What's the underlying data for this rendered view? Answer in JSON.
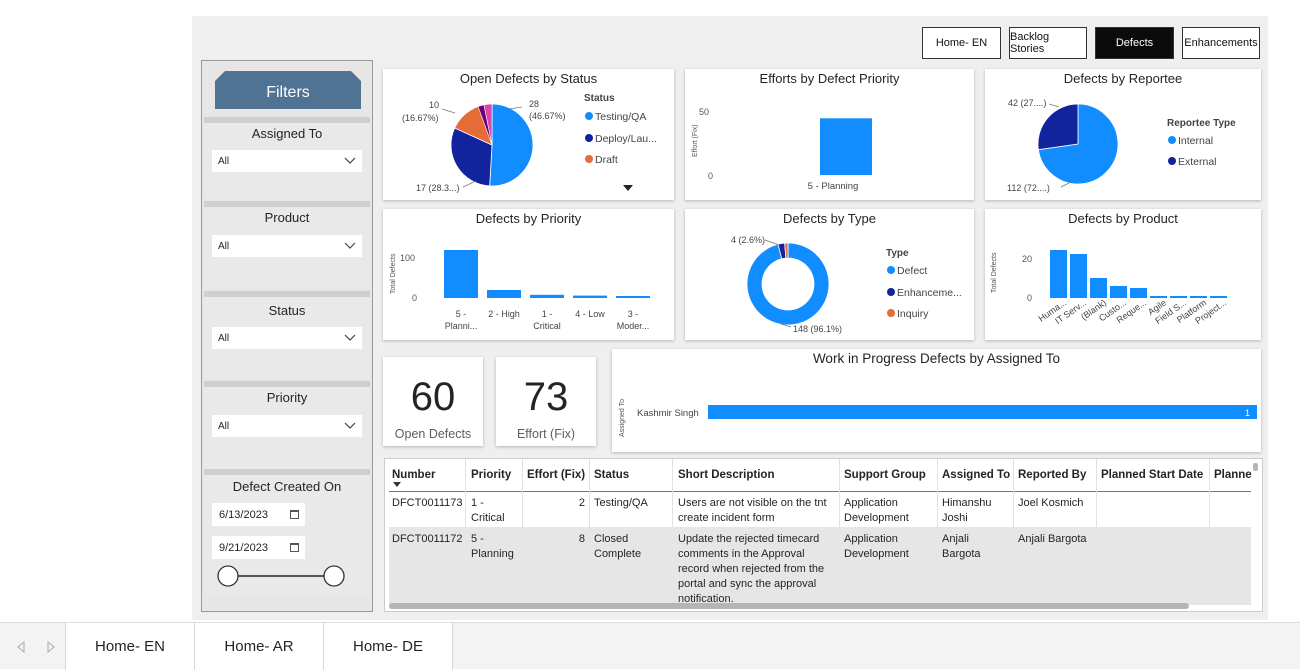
{
  "nav": {
    "buttons": [
      "Home- EN",
      "Backlog Stories",
      "Defects",
      "Enhancements"
    ]
  },
  "filters": {
    "header": "Filters",
    "assigned_to": {
      "label": "Assigned To",
      "value": "All"
    },
    "product": {
      "label": "Product",
      "value": "All"
    },
    "status": {
      "label": "Status",
      "value": "All"
    },
    "priority": {
      "label": "Priority",
      "value": "All"
    },
    "created": {
      "label": "Defect Created On",
      "start": "6/13/2023",
      "end": "9/21/2023"
    }
  },
  "open_by_status": {
    "title": "Open Defects by Status",
    "legend_title": "Status",
    "legend": [
      "Testing/QA",
      "Deploy/Lau...",
      "Draft"
    ],
    "label_top_left_1": "10",
    "label_top_left_2": "(16.67%)",
    "label_top_right_1": "28",
    "label_top_right_2": "(46.67%)",
    "label_bottom": "17 (28.3...)"
  },
  "efforts_by_priority": {
    "title": "Efforts by Defect Priority",
    "ylabel": "Effort (Fix)",
    "ticks": [
      "50",
      "0"
    ],
    "category": "5 - Planning"
  },
  "by_reportee": {
    "title": "Defects by Reportee",
    "legend_title": "Reportee Type",
    "legend": [
      "Internal",
      "External"
    ],
    "label_top": "42 (27....)",
    "label_bottom": "112 (72....)"
  },
  "by_priority": {
    "title": "Defects by Priority",
    "ylabel": "Total Defects",
    "ticks": [
      "100",
      "0"
    ],
    "categories": [
      [
        "5 -",
        "Planni..."
      ],
      [
        "2 - High"
      ],
      [
        "1 -",
        "Critical"
      ],
      [
        "4 - Low"
      ],
      [
        "3 -",
        "Moder..."
      ]
    ]
  },
  "by_type": {
    "title": "Defects by Type",
    "legend_title": "Type",
    "legend": [
      "Defect",
      "Enhanceme...",
      "Inquiry"
    ],
    "label_top": "4 (2.6%)",
    "label_bottom": "148 (96.1%)"
  },
  "by_product": {
    "title": "Defects by Product",
    "ylabel": "Total Defects",
    "ticks": [
      "20",
      "0"
    ],
    "categories": [
      "Huma...",
      "IT Serv...",
      "(Blank)",
      "Custo...",
      "Reque...",
      "Agile",
      "Field S...",
      "Platform",
      "Project..."
    ]
  },
  "kpis": [
    {
      "value": "60",
      "label": "Open Defects"
    },
    {
      "value": "73",
      "label": "Effort (Fix)"
    }
  ],
  "wip": {
    "title": "Work in Progress Defects by Assigned To",
    "ylabel": "Assigned To",
    "person": "Kashmir Singh",
    "value_label": "1"
  },
  "table": {
    "headers": [
      "Number",
      "Priority",
      "Effort (Fix)",
      "Status",
      "Short Description",
      "Support Group",
      "Assigned To",
      "Reported By",
      "Planned Start Date",
      "Planne"
    ],
    "rows": [
      {
        "number": "DFCT0011173",
        "priority": [
          "1 -",
          "Critical"
        ],
        "effort": "2",
        "status": [
          "Testing/QA"
        ],
        "desc": [
          "Users are not visible on the tnt",
          "create incident form"
        ],
        "group": [
          "Application",
          "Development"
        ],
        "assigned": [
          "Himanshu",
          "Joshi"
        ],
        "reported": "Joel Kosmich"
      },
      {
        "number": "DFCT0011172",
        "priority": [
          "5 -",
          "Planning"
        ],
        "effort": "8",
        "status": [
          "Closed",
          "Complete"
        ],
        "desc": [
          "Update the rejected timecard",
          "comments in the Approval",
          "record when rejected from the",
          "portal and sync the approval",
          "notification."
        ],
        "group": [
          "Application",
          "Development"
        ],
        "assigned": [
          "Anjali",
          "Bargota"
        ],
        "reported": "Anjali Bargota"
      }
    ]
  },
  "tabs": [
    "Home- EN",
    "Home- AR",
    "Home- DE"
  ],
  "colors": {
    "blue": "#118dff",
    "navy": "#12239e",
    "orange": "#e66c37",
    "purple": "#6b007b",
    "pink": "#e044a7",
    "filter_header": "#507394"
  },
  "chart_data": [
    {
      "type": "pie",
      "title": "Open Defects by Status",
      "legend_title": "Status",
      "categories": [
        "Testing/QA",
        "Deploy/Lau...",
        "Draft"
      ],
      "values": [
        28,
        17,
        10
      ],
      "percentages": [
        46.67,
        28.3,
        16.67
      ]
    },
    {
      "type": "bar",
      "title": "Efforts by Defect Priority",
      "ylabel": "Effort (Fix)",
      "categories": [
        "5 - Planning"
      ],
      "values": [
        45
      ],
      "ylim": [
        0,
        60
      ]
    },
    {
      "type": "pie",
      "title": "Defects by Reportee",
      "legend_title": "Reportee Type",
      "categories": [
        "Internal",
        "External"
      ],
      "values": [
        112,
        42
      ]
    },
    {
      "type": "bar",
      "title": "Defects by Priority",
      "ylabel": "Total Defects",
      "categories": [
        "5 - Planni...",
        "2 - High",
        "1 - Critical",
        "4 - Low",
        "3 - Moder..."
      ],
      "values": [
        120,
        20,
        8,
        6,
        5
      ],
      "ylim": [
        0,
        130
      ]
    },
    {
      "type": "pie",
      "title": "Defects by Type",
      "legend_title": "Type",
      "categories": [
        "Defect",
        "Enhanceme...",
        "Inquiry"
      ],
      "values": [
        148,
        4,
        2
      ],
      "percentages": [
        96.1,
        2.6,
        1.3
      ]
    },
    {
      "type": "bar",
      "title": "Defects by Product",
      "ylabel": "Total Defects",
      "categories": [
        "Huma...",
        "IT Serv...",
        "(Blank)",
        "Custo...",
        "Reque...",
        "Agile",
        "Field S...",
        "Platform",
        "Project..."
      ],
      "values": [
        24,
        22,
        10,
        6,
        5,
        1,
        1,
        1,
        1
      ],
      "ylim": [
        0,
        28
      ]
    },
    {
      "type": "bar",
      "title": "Work in Progress Defects by Assigned To",
      "ylabel": "Assigned To",
      "categories": [
        "Kashmir Singh"
      ],
      "values": [
        1
      ],
      "xlim": [
        0,
        1
      ]
    }
  ]
}
